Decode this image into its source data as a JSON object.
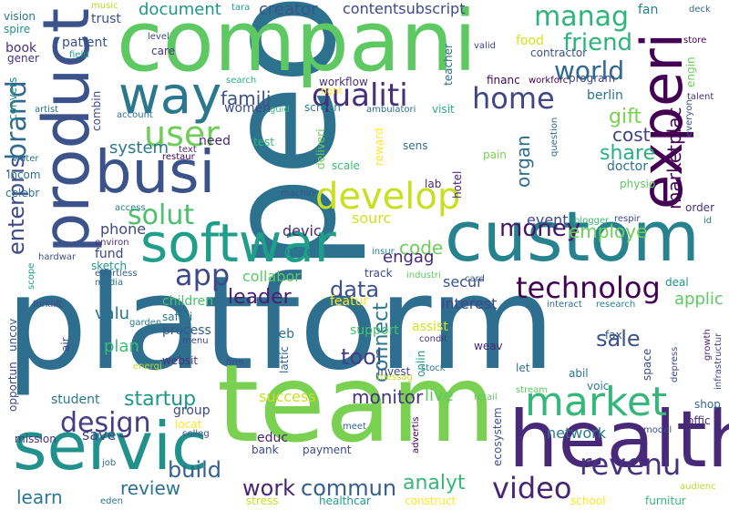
{
  "words": [
    {
      "text": "platform",
      "color": "#2e6e8e"
    },
    {
      "text": "peopl",
      "color": "#2c728e"
    },
    {
      "text": "compani",
      "color": "#5ec962"
    },
    {
      "text": "team",
      "color": "#7ad151"
    },
    {
      "text": "custom",
      "color": "#26828e"
    },
    {
      "text": "product",
      "color": "#3b528b"
    },
    {
      "text": "health",
      "color": "#482878"
    },
    {
      "text": "servic",
      "color": "#21918c"
    },
    {
      "text": "softwar",
      "color": "#1f9e89"
    },
    {
      "text": "busi",
      "color": "#3b528b"
    },
    {
      "text": "experi",
      "color": "#440154"
    },
    {
      "text": "way",
      "color": "#2a788e"
    },
    {
      "text": "market",
      "color": "#35b779"
    },
    {
      "text": "develop",
      "color": "#c8e020"
    },
    {
      "text": "user",
      "color": "#6ece58"
    },
    {
      "text": "qualiti",
      "color": "#472d7b"
    },
    {
      "text": "home",
      "color": "#414487"
    },
    {
      "text": "brand",
      "color": "#31688e"
    },
    {
      "text": "enterpris",
      "color": "#3e4989"
    },
    {
      "text": "solut",
      "color": "#4ac16d"
    },
    {
      "text": "app",
      "color": "#3e4989"
    },
    {
      "text": "technolog",
      "color": "#440154"
    },
    {
      "text": "revenu",
      "color": "#46327e"
    },
    {
      "text": "video",
      "color": "#482475"
    },
    {
      "text": "design",
      "color": "#433e85"
    },
    {
      "text": "manag",
      "color": "#2fb47c"
    },
    {
      "text": "world",
      "color": "#31688e"
    },
    {
      "text": "friend",
      "color": "#2eb37c"
    },
    {
      "text": "money",
      "color": "#481668"
    },
    {
      "text": "leader",
      "color": "#481f70"
    },
    {
      "text": "data",
      "color": "#3b528b"
    },
    {
      "text": "tool",
      "color": "#433e85"
    },
    {
      "text": "startup",
      "color": "#1f968b"
    },
    {
      "text": "build",
      "color": "#34618d"
    },
    {
      "text": "work",
      "color": "#482677"
    },
    {
      "text": "commun",
      "color": "#355f8d"
    },
    {
      "text": "analyt",
      "color": "#35b779"
    },
    {
      "text": "review",
      "color": "#2c728e"
    },
    {
      "text": "sale",
      "color": "#3b528b"
    },
    {
      "text": "monitor",
      "color": "#46337e"
    },
    {
      "text": "gift",
      "color": "#7ad151"
    },
    {
      "text": "share",
      "color": "#29af7f"
    },
    {
      "text": "cost",
      "color": "#414487"
    },
    {
      "text": "employe",
      "color": "#6ece58"
    },
    {
      "text": "code",
      "color": "#6ece58"
    },
    {
      "text": "engag",
      "color": "#482878"
    },
    {
      "text": "famili",
      "color": "#3b528b"
    },
    {
      "text": "system",
      "color": "#2a788e"
    },
    {
      "text": "plan",
      "color": "#3dbc74"
    },
    {
      "text": "valu",
      "color": "#2c728e"
    },
    {
      "text": "connect",
      "color": "#2a788e"
    },
    {
      "text": "organ",
      "color": "#2d708e"
    },
    {
      "text": "marketplac",
      "color": "#440154"
    },
    {
      "text": "applic",
      "color": "#5ec962"
    },
    {
      "text": "learn",
      "color": "#2a788e"
    },
    {
      "text": "save",
      "color": "#414487"
    },
    {
      "text": "document",
      "color": "#1f968b"
    },
    {
      "text": "creator",
      "color": "#3b528b"
    },
    {
      "text": "contentsubscript",
      "color": "#3e4989"
    },
    {
      "text": "devic",
      "color": "#472c7a"
    },
    {
      "text": "event",
      "color": "#3e4989"
    },
    {
      "text": "phone",
      "color": "#3e4989"
    },
    {
      "text": "success",
      "color": "#c8e020"
    },
    {
      "text": "live",
      "color": "#5ec962"
    },
    {
      "text": "network",
      "color": "#2a788e"
    },
    {
      "text": "secur",
      "color": "#3b528b"
    },
    {
      "text": "interest",
      "color": "#404688"
    },
    {
      "text": "collabor",
      "color": "#5ec962"
    },
    {
      "text": "sourc",
      "color": "#d0e11c"
    },
    {
      "text": "featur",
      "color": "#fde725"
    },
    {
      "text": "process",
      "color": "#365c8d"
    },
    {
      "text": "web",
      "color": "#2d708e"
    },
    {
      "text": "support",
      "color": "#4ac16d"
    },
    {
      "text": "fund",
      "color": "#3e4989"
    },
    {
      "text": "control",
      "color": "#2a788e"
    },
    {
      "text": "educ",
      "color": "#481f70"
    },
    {
      "text": "children",
      "color": "#4ac16d"
    },
    {
      "text": "group",
      "color": "#3e4989"
    },
    {
      "text": "food",
      "color": "#d5e21a"
    },
    {
      "text": "fan",
      "color": "#26828e"
    },
    {
      "text": "trust",
      "color": "#3b528b"
    },
    {
      "text": "need",
      "color": "#482878"
    },
    {
      "text": "women",
      "color": "#3e4989"
    },
    {
      "text": "workflow",
      "color": "#46327e"
    },
    {
      "text": "screen",
      "color": "#26828e"
    },
    {
      "text": "visit",
      "color": "#29af7f"
    },
    {
      "text": "financ",
      "color": "#46085c"
    },
    {
      "text": "workforc",
      "color": "#440154"
    },
    {
      "text": "program",
      "color": "#3e4989"
    },
    {
      "text": "berlin",
      "color": "#2c728e"
    },
    {
      "text": "doctor",
      "color": "#2c728e"
    },
    {
      "text": "contractor",
      "color": "#3b528b"
    },
    {
      "text": "patient",
      "color": "#3b528b"
    },
    {
      "text": "book",
      "color": "#46327e"
    },
    {
      "text": "vision",
      "color": "#2c728e"
    },
    {
      "text": "spire",
      "color": "#21918c"
    },
    {
      "text": "gener",
      "color": "#46327e"
    },
    {
      "text": "music",
      "color": "#b5de2b"
    },
    {
      "text": "tara",
      "color": "#1f9e89"
    },
    {
      "text": "level",
      "color": "#3e4989"
    },
    {
      "text": "care",
      "color": "#46327e"
    },
    {
      "text": "search",
      "color": "#27ad81"
    },
    {
      "text": "field",
      "color": "#1f9e89"
    },
    {
      "text": "teacher",
      "color": "#2d708e"
    },
    {
      "text": "valid",
      "color": "#414487"
    },
    {
      "text": "store",
      "color": "#440154"
    },
    {
      "text": "deck",
      "color": "#31688e"
    },
    {
      "text": "talent",
      "color": "#46327e"
    },
    {
      "text": "engin",
      "color": "#6ece58"
    },
    {
      "text": "everyon",
      "color": "#3b528b"
    },
    {
      "text": "physio",
      "color": "#5ec962"
    },
    {
      "text": "order",
      "color": "#46327e"
    },
    {
      "text": "id",
      "color": "#2c728e"
    },
    {
      "text": "respir",
      "color": "#3e4989"
    },
    {
      "text": "blogger",
      "color": "#3dbc74"
    },
    {
      "text": "artist",
      "color": "#2c728e"
    },
    {
      "text": "convers",
      "color": "#21918c"
    },
    {
      "text": "combin",
      "color": "#3e4989"
    },
    {
      "text": "account",
      "color": "#2c728e"
    },
    {
      "text": "guid",
      "color": "#35b779"
    },
    {
      "text": "right",
      "color": "#fde725"
    },
    {
      "text": "ambulatori",
      "color": "#2c728e"
    },
    {
      "text": "water",
      "color": "#2c728e"
    },
    {
      "text": "incom",
      "color": "#2c728e"
    },
    {
      "text": "celebr",
      "color": "#2c728e"
    },
    {
      "text": "restaur",
      "color": "#440154"
    },
    {
      "text": "text",
      "color": "#472d7b"
    },
    {
      "text": "test",
      "color": "#35b779"
    },
    {
      "text": "machin",
      "color": "#3b528b"
    },
    {
      "text": "deliveri",
      "color": "#6ece58"
    },
    {
      "text": "hotel",
      "color": "#481f70"
    },
    {
      "text": "sens",
      "color": "#2c728e"
    },
    {
      "text": "reward",
      "color": "#fde725"
    },
    {
      "text": "scale",
      "color": "#3dbc74"
    },
    {
      "text": "lab",
      "color": "#482878"
    },
    {
      "text": "pain",
      "color": "#7ad151"
    },
    {
      "text": "question",
      "color": "#31688e"
    },
    {
      "text": "access",
      "color": "#26828e"
    },
    {
      "text": "insur",
      "color": "#26828e"
    },
    {
      "text": "environ",
      "color": "#46327e"
    },
    {
      "text": "sketch",
      "color": "#1f968b"
    },
    {
      "text": "effortless",
      "color": "#355f8d"
    },
    {
      "text": "hardwar",
      "color": "#3b528b"
    },
    {
      "text": "media",
      "color": "#2c728e"
    },
    {
      "text": "scope",
      "color": "#1f9e89"
    },
    {
      "text": "industri",
      "color": "#5ec962"
    },
    {
      "text": "card",
      "color": "#3b528b"
    },
    {
      "text": "track",
      "color": "#3e4989"
    },
    {
      "text": "interact",
      "color": "#31688e"
    },
    {
      "text": "research",
      "color": "#26828e"
    },
    {
      "text": "forklift",
      "color": "#3e4989"
    },
    {
      "text": "garden",
      "color": "#2a788e"
    },
    {
      "text": "safeti",
      "color": "#2a788e"
    },
    {
      "text": "menu",
      "color": "#414487"
    },
    {
      "text": "assist",
      "color": "#d5e21a"
    },
    {
      "text": "condit",
      "color": "#46327e"
    },
    {
      "text": "fax",
      "color": "#3b528b"
    },
    {
      "text": "deal",
      "color": "#21918c"
    },
    {
      "text": "uncov",
      "color": "#3b528b"
    },
    {
      "text": "opportun",
      "color": "#3e4989"
    },
    {
      "text": "air",
      "color": "#3e4989"
    },
    {
      "text": "energi",
      "color": "#b5de2b"
    },
    {
      "text": "firm",
      "color": "#3e4989"
    },
    {
      "text": "websit",
      "color": "#46327e"
    },
    {
      "text": "lattic",
      "color": "#31688e"
    },
    {
      "text": "messag",
      "color": "#c8e020"
    },
    {
      "text": "invest",
      "color": "#3e4989"
    },
    {
      "text": "onlin",
      "color": "#1f9e89"
    },
    {
      "text": "weav",
      "color": "#482878"
    },
    {
      "text": "let",
      "color": "#2c728e"
    },
    {
      "text": "abil",
      "color": "#2c728e"
    },
    {
      "text": "voic",
      "color": "#2a788e"
    },
    {
      "text": "space",
      "color": "#3e4989"
    },
    {
      "text": "depress",
      "color": "#3e4989"
    },
    {
      "text": "growth",
      "color": "#482878"
    },
    {
      "text": "infrastructur",
      "color": "#3e4989"
    },
    {
      "text": "shop",
      "color": "#31688e"
    },
    {
      "text": "offic",
      "color": "#46327e"
    },
    {
      "text": "student",
      "color": "#2a788e"
    },
    {
      "text": "mission",
      "color": "#46327e"
    },
    {
      "text": "locat",
      "color": "#fde725"
    },
    {
      "text": "colleg",
      "color": "#3b528b"
    },
    {
      "text": "bank",
      "color": "#3e4989"
    },
    {
      "text": "payment",
      "color": "#3e4989"
    },
    {
      "text": "meet",
      "color": "#31688e"
    },
    {
      "text": "advertis",
      "color": "#440154"
    },
    {
      "text": "ecosystem",
      "color": "#3b528b"
    },
    {
      "text": "retail",
      "color": "#5ec962"
    },
    {
      "text": "stream",
      "color": "#5ec962"
    },
    {
      "text": "model",
      "color": "#3e4989"
    },
    {
      "text": "audienc",
      "color": "#b5de2b"
    },
    {
      "text": "furnitur",
      "color": "#35b779"
    },
    {
      "text": "school",
      "color": "#fde725"
    },
    {
      "text": "job",
      "color": "#2c728e"
    },
    {
      "text": "eden",
      "color": "#2c728e"
    },
    {
      "text": "stress",
      "color": "#c8e020"
    },
    {
      "text": "healthcar",
      "color": "#1f9e89"
    },
    {
      "text": "construct",
      "color": "#fde725"
    },
    {
      "text": "stock",
      "color": "#2a788e"
    }
  ]
}
